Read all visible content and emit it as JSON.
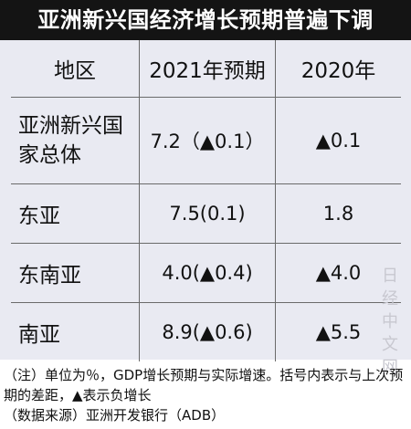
{
  "title": "亚洲新兴国经济增长预期普遍下调",
  "table": {
    "headers": [
      "地区",
      "2021年预期",
      "2020年"
    ],
    "rows": [
      {
        "region": "亚洲新兴国家总体",
        "forecast_2021": "7.2（▲0.1）",
        "value_2020": "▲0.1"
      },
      {
        "region": "东亚",
        "forecast_2021": "7.5(0.1)",
        "value_2020": "1.8"
      },
      {
        "region": "东南亚",
        "forecast_2021": "4.0(▲0.4)",
        "value_2020": "▲4.0"
      },
      {
        "region": "南亚",
        "forecast_2021": "8.9(▲0.6)",
        "value_2020": "▲5.5"
      }
    ]
  },
  "watermark": "日经中文网",
  "note": "（注）单位为％，GDP增长预期与实际增速。括号内表示与上次预期的差距，▲表示负增长",
  "source": "（数据来源）亚洲开发银行（ADB）"
}
